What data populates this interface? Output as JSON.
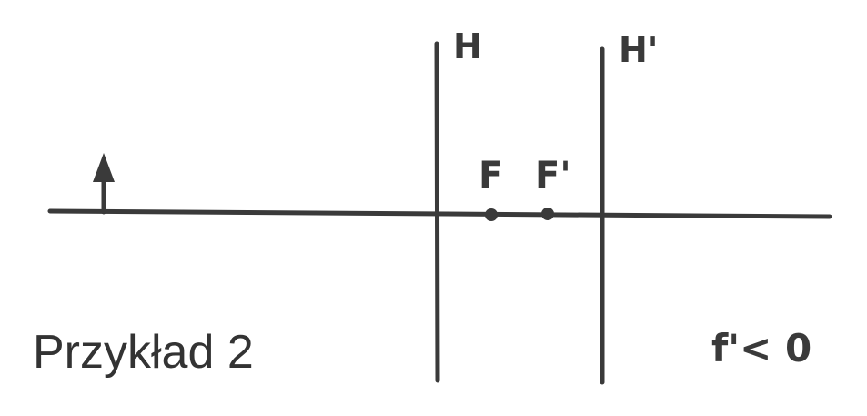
{
  "labels": {
    "principal_plane_object": "H",
    "principal_plane_image": "H'",
    "focal_point_object": "F",
    "focal_point_image": "F'",
    "condition": "f'< 0"
  },
  "caption": "Przykład 2"
}
